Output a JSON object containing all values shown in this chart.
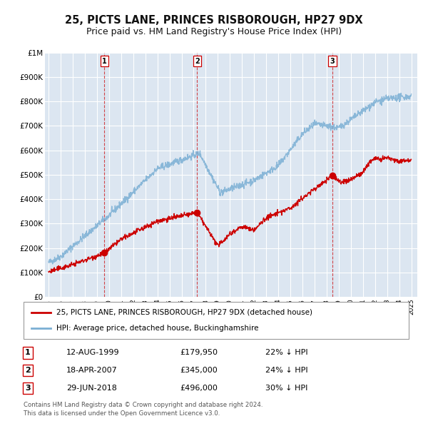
{
  "title": "25, PICTS LANE, PRINCES RISBOROUGH, HP27 9DX",
  "subtitle": "Price paid vs. HM Land Registry's House Price Index (HPI)",
  "title_fontsize": 10.5,
  "subtitle_fontsize": 9,
  "bg_color": "#ffffff",
  "plot_bg_color": "#dce6f1",
  "grid_color": "#ffffff",
  "red_line_color": "#cc0000",
  "blue_line_color": "#7bafd4",
  "sale_marker_color": "#cc0000",
  "sale_marker_size": 6,
  "vline_color": "#cc0000",
  "ylim": [
    0,
    1000000
  ],
  "ytick_labels": [
    "£0",
    "£100K",
    "£200K",
    "£300K",
    "£400K",
    "£500K",
    "£600K",
    "£700K",
    "£800K",
    "£900K",
    "£1M"
  ],
  "ytick_values": [
    0,
    100000,
    200000,
    300000,
    400000,
    500000,
    600000,
    700000,
    800000,
    900000,
    1000000
  ],
  "sales": [
    {
      "label": "1",
      "date": "12-AUG-1999",
      "year": 1999.62,
      "price": 179950,
      "price_str": "£179,950",
      "pct": "22%",
      "dir": "↓"
    },
    {
      "label": "2",
      "date": "18-APR-2007",
      "year": 2007.29,
      "price": 345000,
      "price_str": "£345,000",
      "pct": "24%",
      "dir": "↓"
    },
    {
      "label": "3",
      "date": "29-JUN-2018",
      "year": 2018.49,
      "price": 496000,
      "price_str": "£496,000",
      "pct": "30%",
      "dir": "↓"
    }
  ],
  "legend_label_red": "25, PICTS LANE, PRINCES RISBOROUGH, HP27 9DX (detached house)",
  "legend_label_blue": "HPI: Average price, detached house, Buckinghamshire",
  "footer_line1": "Contains HM Land Registry data © Crown copyright and database right 2024.",
  "footer_line2": "This data is licensed under the Open Government Licence v3.0."
}
